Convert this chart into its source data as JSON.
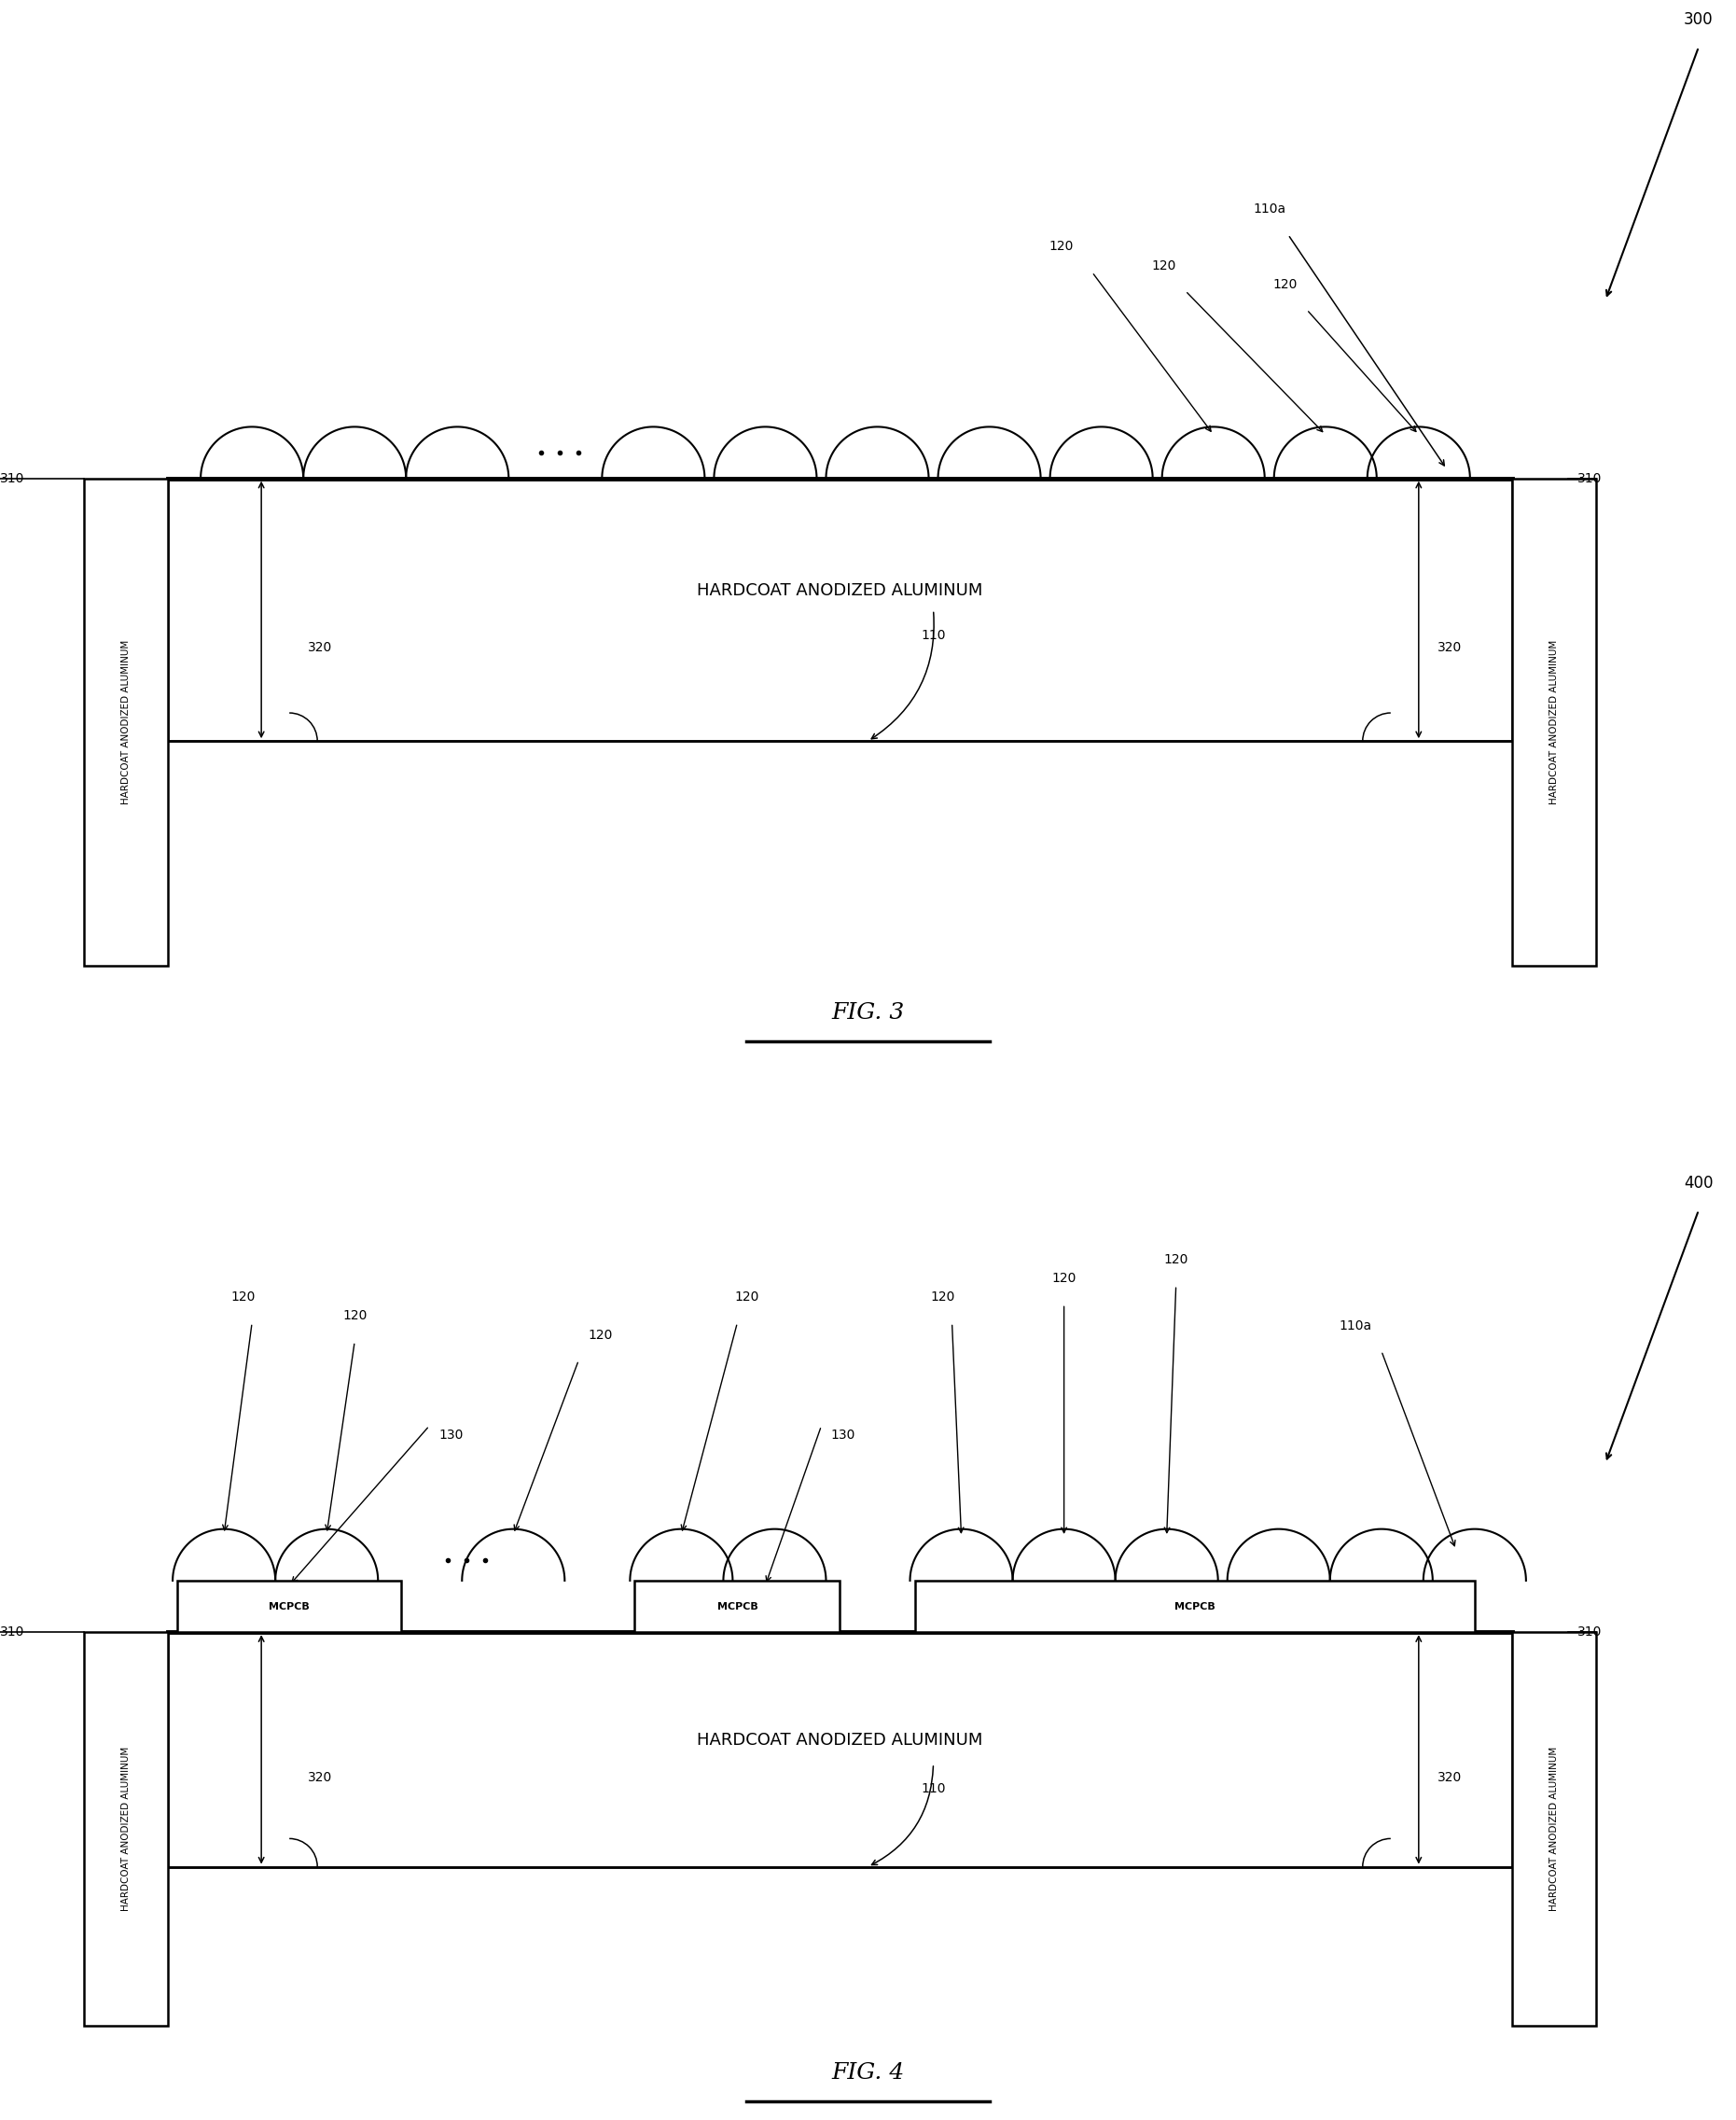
{
  "bg_color": "#ffffff",
  "line_color": "#000000",
  "fig3_label": "FIG. 3",
  "fig4_label": "FIG. 4",
  "ref300": "300",
  "ref400": "400",
  "ref110": "110",
  "ref110a": "110a",
  "ref120": "120",
  "ref130": "130",
  "ref310": "310",
  "ref320": "320",
  "ref_mcpcb": "MCPCB",
  "hardcoat_label": "HARDCOAT ANODIZED ALUMINUM",
  "side_label": "HARDCOAT ANODIZED ALUMINUM"
}
